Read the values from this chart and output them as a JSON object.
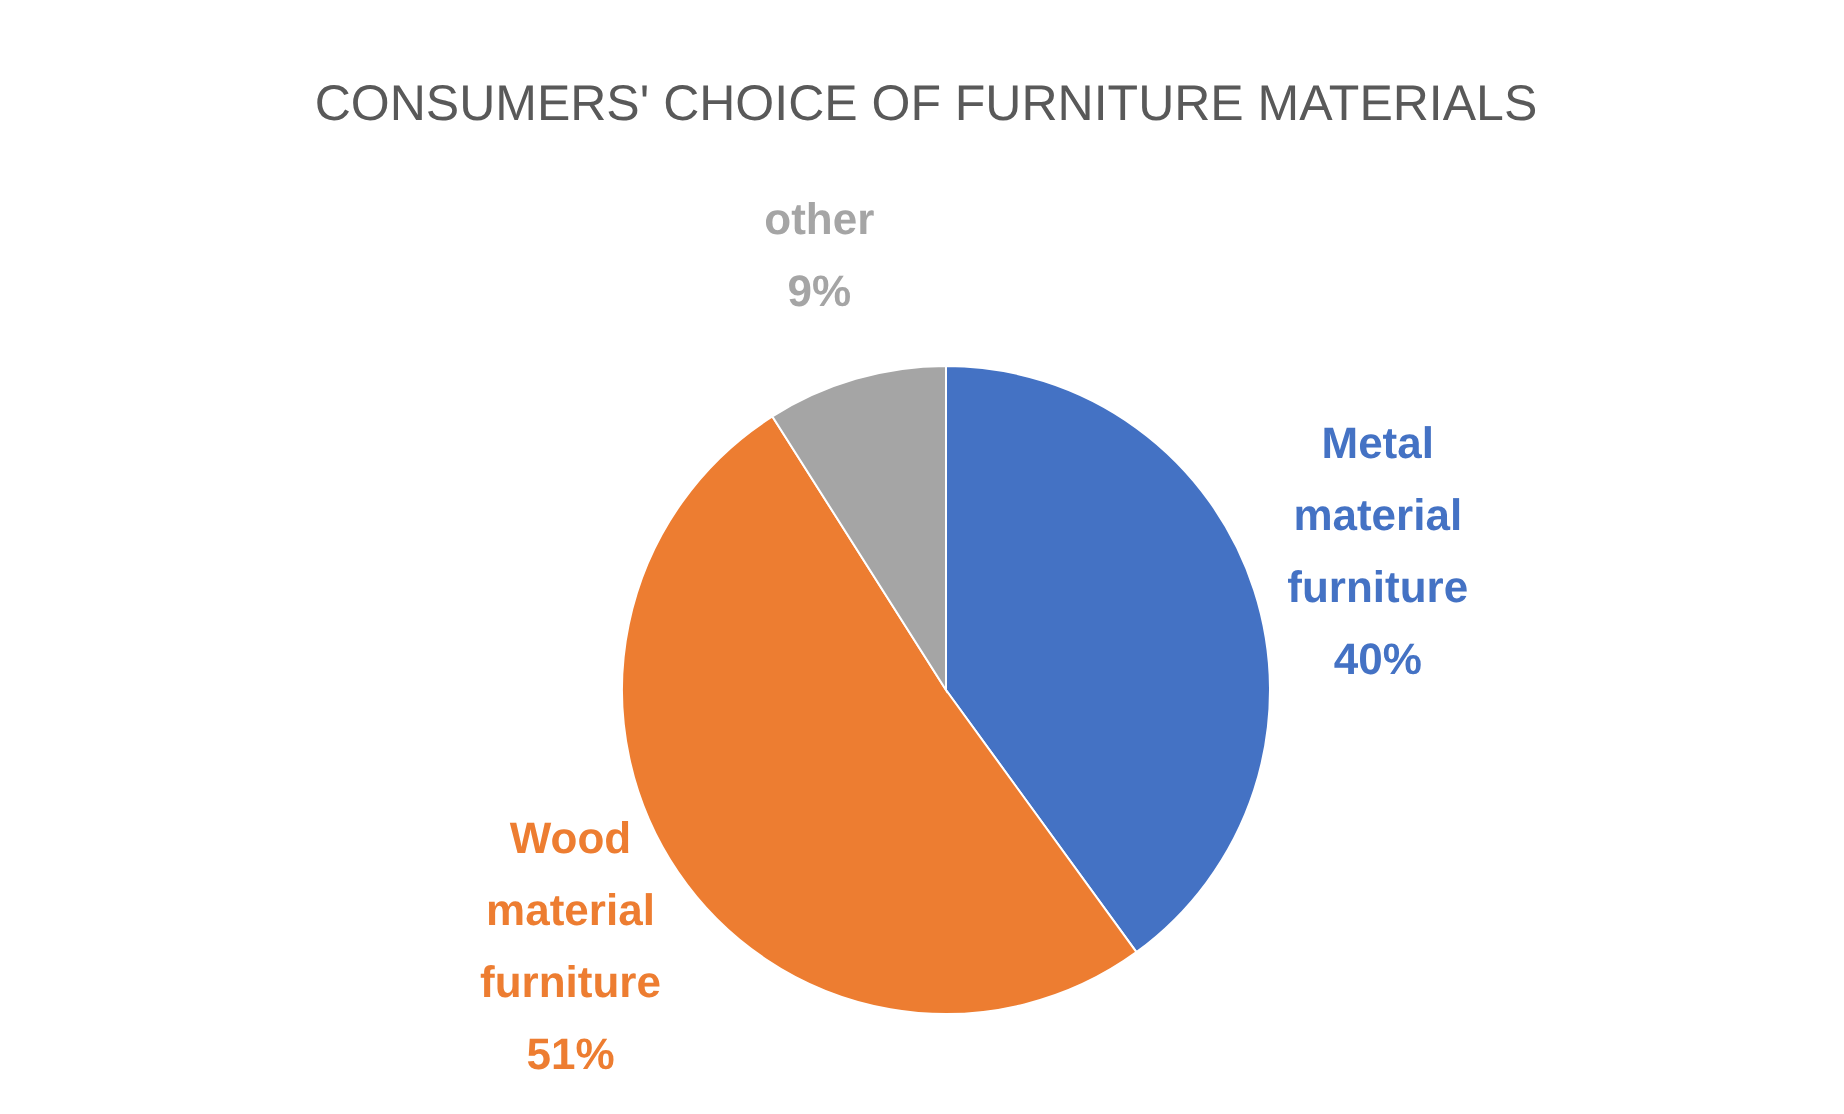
{
  "chart_data": {
    "type": "pie",
    "title": "CONSUMERS' CHOICE OF FURNITURE MATERIALS",
    "categories": [
      "Metal material furniture",
      "Wood material furniture",
      "other"
    ],
    "values": [
      40,
      51,
      9
    ],
    "colors": [
      "#4472c4",
      "#ed7d31",
      "#a5a5a5"
    ],
    "value_labels": [
      "40%",
      "51%",
      "9%"
    ]
  }
}
